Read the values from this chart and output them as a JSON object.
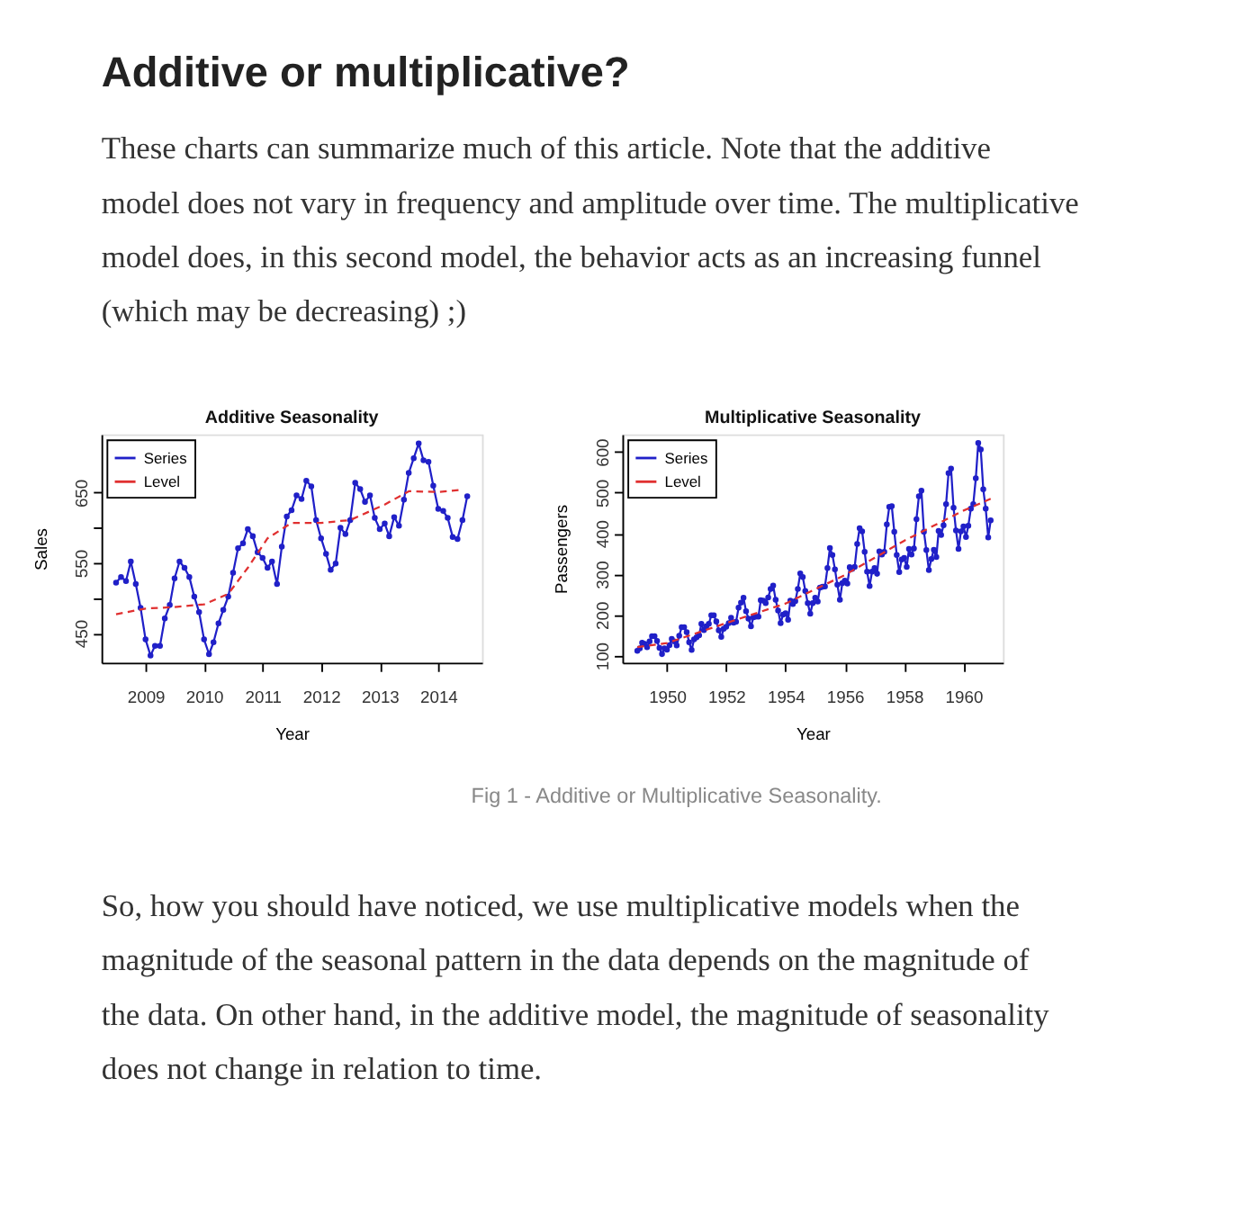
{
  "chart_data": [
    {
      "type": "other",
      "title": "Additive or multiplicative?",
      "annotations": [
        "These charts can summarize much of this article. Note that the additive model does not vary in frequency and amplitude over time. The multiplicative model does, in this second model, the behavior acts as an increasing funnel (which may be decreasing) ;)"
      ]
    },
    {
      "type": "line",
      "title": "Additive Seasonality",
      "xlabel": "Year",
      "ylabel": "Sales",
      "xlim": [
        "2008-04",
        "2014-10"
      ],
      "xticks": [
        "2009",
        "2010",
        "2011",
        "2012",
        "2013",
        "2014"
      ],
      "ylim": [
        408,
        733
      ],
      "yticks": [
        450,
        {
          "value": 500,
          "label": null
        },
        550,
        {
          "value": 600,
          "label": null
        },
        650
      ],
      "grid": false,
      "legend": "top left",
      "x": [
        "2008-07",
        "2008-08",
        "2008-09",
        "2008-10",
        "2008-11",
        "2008-12",
        "2009-01",
        "2009-02",
        "2009-03",
        "2009-04",
        "2009-05",
        "2009-06",
        "2009-07",
        "2009-08",
        "2009-09",
        "2009-10",
        "2009-11",
        "2009-12",
        "2010-01",
        "2010-02",
        "2010-03",
        "2010-04",
        "2010-05",
        "2010-06",
        "2010-07",
        "2010-08",
        "2010-09",
        "2010-10",
        "2010-11",
        "2010-12",
        "2011-01",
        "2011-02",
        "2011-03",
        "2011-04",
        "2011-05",
        "2011-06",
        "2011-07",
        "2011-08",
        "2011-09",
        "2011-10",
        "2011-11",
        "2011-12",
        "2012-01",
        "2012-02",
        "2012-03",
        "2012-04",
        "2012-05",
        "2012-06",
        "2012-07",
        "2012-08",
        "2012-09",
        "2012-10",
        "2012-11",
        "2012-12",
        "2013-01",
        "2013-02",
        "2013-03",
        "2013-04",
        "2013-05",
        "2013-06",
        "2013-07",
        "2013-08",
        "2013-09",
        "2013-10",
        "2013-11",
        "2013-12",
        "2014-01",
        "2014-02",
        "2014-03",
        "2014-04",
        "2014-05",
        "2014-06",
        "2014-07"
      ],
      "series": [
        {
          "name": "Series",
          "color": "#2020c8",
          "marker": "circle",
          "line_style": "solid",
          "values": [
            522,
            530,
            524,
            552,
            520,
            486,
            441,
            418,
            432,
            432,
            471,
            490,
            528,
            552,
            543,
            530,
            502,
            480,
            441,
            420,
            437,
            464,
            483,
            502,
            536,
            571,
            578,
            598,
            588,
            565,
            557,
            543,
            552,
            520,
            573,
            616,
            625,
            646,
            641,
            667,
            659,
            611,
            585,
            563,
            540,
            549,
            600,
            591,
            611,
            664,
            655,
            637,
            646,
            614,
            598,
            606,
            588,
            615,
            603,
            640,
            678,
            699,
            720,
            696,
            694,
            660,
            627,
            624,
            614,
            587,
            584,
            611,
            645
          ]
        },
        {
          "name": "Level",
          "color": "#e03030",
          "marker": "none",
          "line_style": "dashed",
          "x": [
            "2008-07",
            "2009-01",
            "2009-07",
            "2010-01",
            "2010-06",
            "2010-10",
            "2011-02",
            "2011-07",
            "2012-01",
            "2012-07",
            "2013-02",
            "2013-07",
            "2014-01",
            "2014-06"
          ],
          "values": [
            477,
            485,
            487,
            491,
            506,
            543,
            585,
            607,
            607,
            611,
            633,
            652,
            651,
            654
          ]
        }
      ]
    },
    {
      "type": "line",
      "title": "Multiplicative Seasonality",
      "xlabel": "Year",
      "ylabel": "Passengers",
      "xlim": [
        "1948-07",
        "1961-05"
      ],
      "xticks": [
        "1950",
        "1952",
        "1954",
        "1956",
        "1958",
        "1960"
      ],
      "ylim": [
        83,
        643
      ],
      "yticks": [
        100,
        200,
        300,
        400,
        500,
        600
      ],
      "grid": false,
      "legend": "top left",
      "x": [
        "1949-01",
        "1949-02",
        "1949-03",
        "1949-04",
        "1949-05",
        "1949-06",
        "1949-07",
        "1949-08",
        "1949-09",
        "1949-10",
        "1949-11",
        "1949-12",
        "1950-01",
        "1950-02",
        "1950-03",
        "1950-04",
        "1950-05",
        "1950-06",
        "1950-07",
        "1950-08",
        "1950-09",
        "1950-10",
        "1950-11",
        "1950-12",
        "1951-01",
        "1951-02",
        "1951-03",
        "1951-04",
        "1951-05",
        "1951-06",
        "1951-07",
        "1951-08",
        "1951-09",
        "1951-10",
        "1951-11",
        "1951-12",
        "1952-01",
        "1952-02",
        "1952-03",
        "1952-04",
        "1952-05",
        "1952-06",
        "1952-07",
        "1952-08",
        "1952-09",
        "1952-10",
        "1952-11",
        "1952-12",
        "1953-01",
        "1953-02",
        "1953-03",
        "1953-04",
        "1953-05",
        "1953-06",
        "1953-07",
        "1953-08",
        "1953-09",
        "1953-10",
        "1953-11",
        "1953-12",
        "1954-01",
        "1954-02",
        "1954-03",
        "1954-04",
        "1954-05",
        "1954-06",
        "1954-07",
        "1954-08",
        "1954-09",
        "1954-10",
        "1954-11",
        "1954-12",
        "1955-01",
        "1955-02",
        "1955-03",
        "1955-04",
        "1955-05",
        "1955-06",
        "1955-07",
        "1955-08",
        "1955-09",
        "1955-10",
        "1955-11",
        "1955-12",
        "1956-01",
        "1956-02",
        "1956-03",
        "1956-04",
        "1956-05",
        "1956-06",
        "1956-07",
        "1956-08",
        "1956-09",
        "1956-10",
        "1956-11",
        "1956-12",
        "1957-01",
        "1957-02",
        "1957-03",
        "1957-04",
        "1957-05",
        "1957-06",
        "1957-07",
        "1957-08",
        "1957-09",
        "1957-10",
        "1957-11",
        "1957-12",
        "1958-01",
        "1958-02",
        "1958-03",
        "1958-04",
        "1958-05",
        "1958-06",
        "1958-07",
        "1958-08",
        "1958-09",
        "1958-10",
        "1958-11",
        "1958-12",
        "1959-01",
        "1959-02",
        "1959-03",
        "1959-04",
        "1959-05",
        "1959-06",
        "1959-07",
        "1959-08",
        "1959-09",
        "1959-10",
        "1959-11",
        "1959-12",
        "1960-01",
        "1960-02",
        "1960-03",
        "1960-04",
        "1960-05",
        "1960-06",
        "1960-07",
        "1960-08",
        "1960-09",
        "1960-10",
        "1960-11",
        "1960-12"
      ],
      "series": [
        {
          "name": "Series",
          "color": "#2020c8",
          "marker": "circle",
          "line_style": "solid",
          "values": [
            112,
            118,
            132,
            129,
            121,
            135,
            148,
            148,
            136,
            119,
            104,
            118,
            115,
            126,
            141,
            135,
            125,
            149,
            170,
            170,
            158,
            133,
            114,
            140,
            145,
            150,
            178,
            163,
            172,
            178,
            199,
            199,
            184,
            162,
            146,
            166,
            171,
            180,
            193,
            181,
            183,
            218,
            230,
            242,
            209,
            191,
            172,
            194,
            196,
            196,
            236,
            235,
            229,
            243,
            264,
            272,
            237,
            211,
            180,
            201,
            204,
            188,
            235,
            227,
            234,
            264,
            302,
            293,
            259,
            229,
            203,
            229,
            242,
            233,
            267,
            269,
            270,
            315,
            364,
            347,
            312,
            274,
            237,
            278,
            284,
            277,
            317,
            313,
            318,
            374,
            413,
            405,
            355,
            306,
            271,
            306,
            315,
            301,
            356,
            348,
            355,
            422,
            465,
            467,
            404,
            347,
            305,
            336,
            340,
            318,
            362,
            348,
            363,
            435,
            491,
            505,
            404,
            359,
            310,
            337,
            360,
            342,
            406,
            396,
            420,
            472,
            548,
            559,
            463,
            407,
            362,
            405,
            417,
            391,
            419,
            461,
            472,
            535,
            622,
            606,
            508,
            461,
            390,
            432
          ]
        },
        {
          "name": "Level",
          "color": "#e03030",
          "marker": "none",
          "line_style": "dashed",
          "x": [
            "1949-01",
            "1950-01",
            "1952-01",
            "1954-01",
            "1956-01",
            "1958-01",
            "1960-01",
            "1960-12"
          ],
          "values": [
            121,
            131,
            180,
            228,
            298,
            382,
            456,
            485
          ]
        }
      ]
    },
    {
      "type": "other",
      "annotations": [
        "Fig 1 - Additive or Multiplicative Seasonality.",
        "So, how you should have noticed, we use multiplicative models when the magnitude of the seasonal pattern in the data depends on the magnitude of the data. On other hand, in the additive model, the magnitude of seasonality does not change in relation to time."
      ]
    }
  ]
}
